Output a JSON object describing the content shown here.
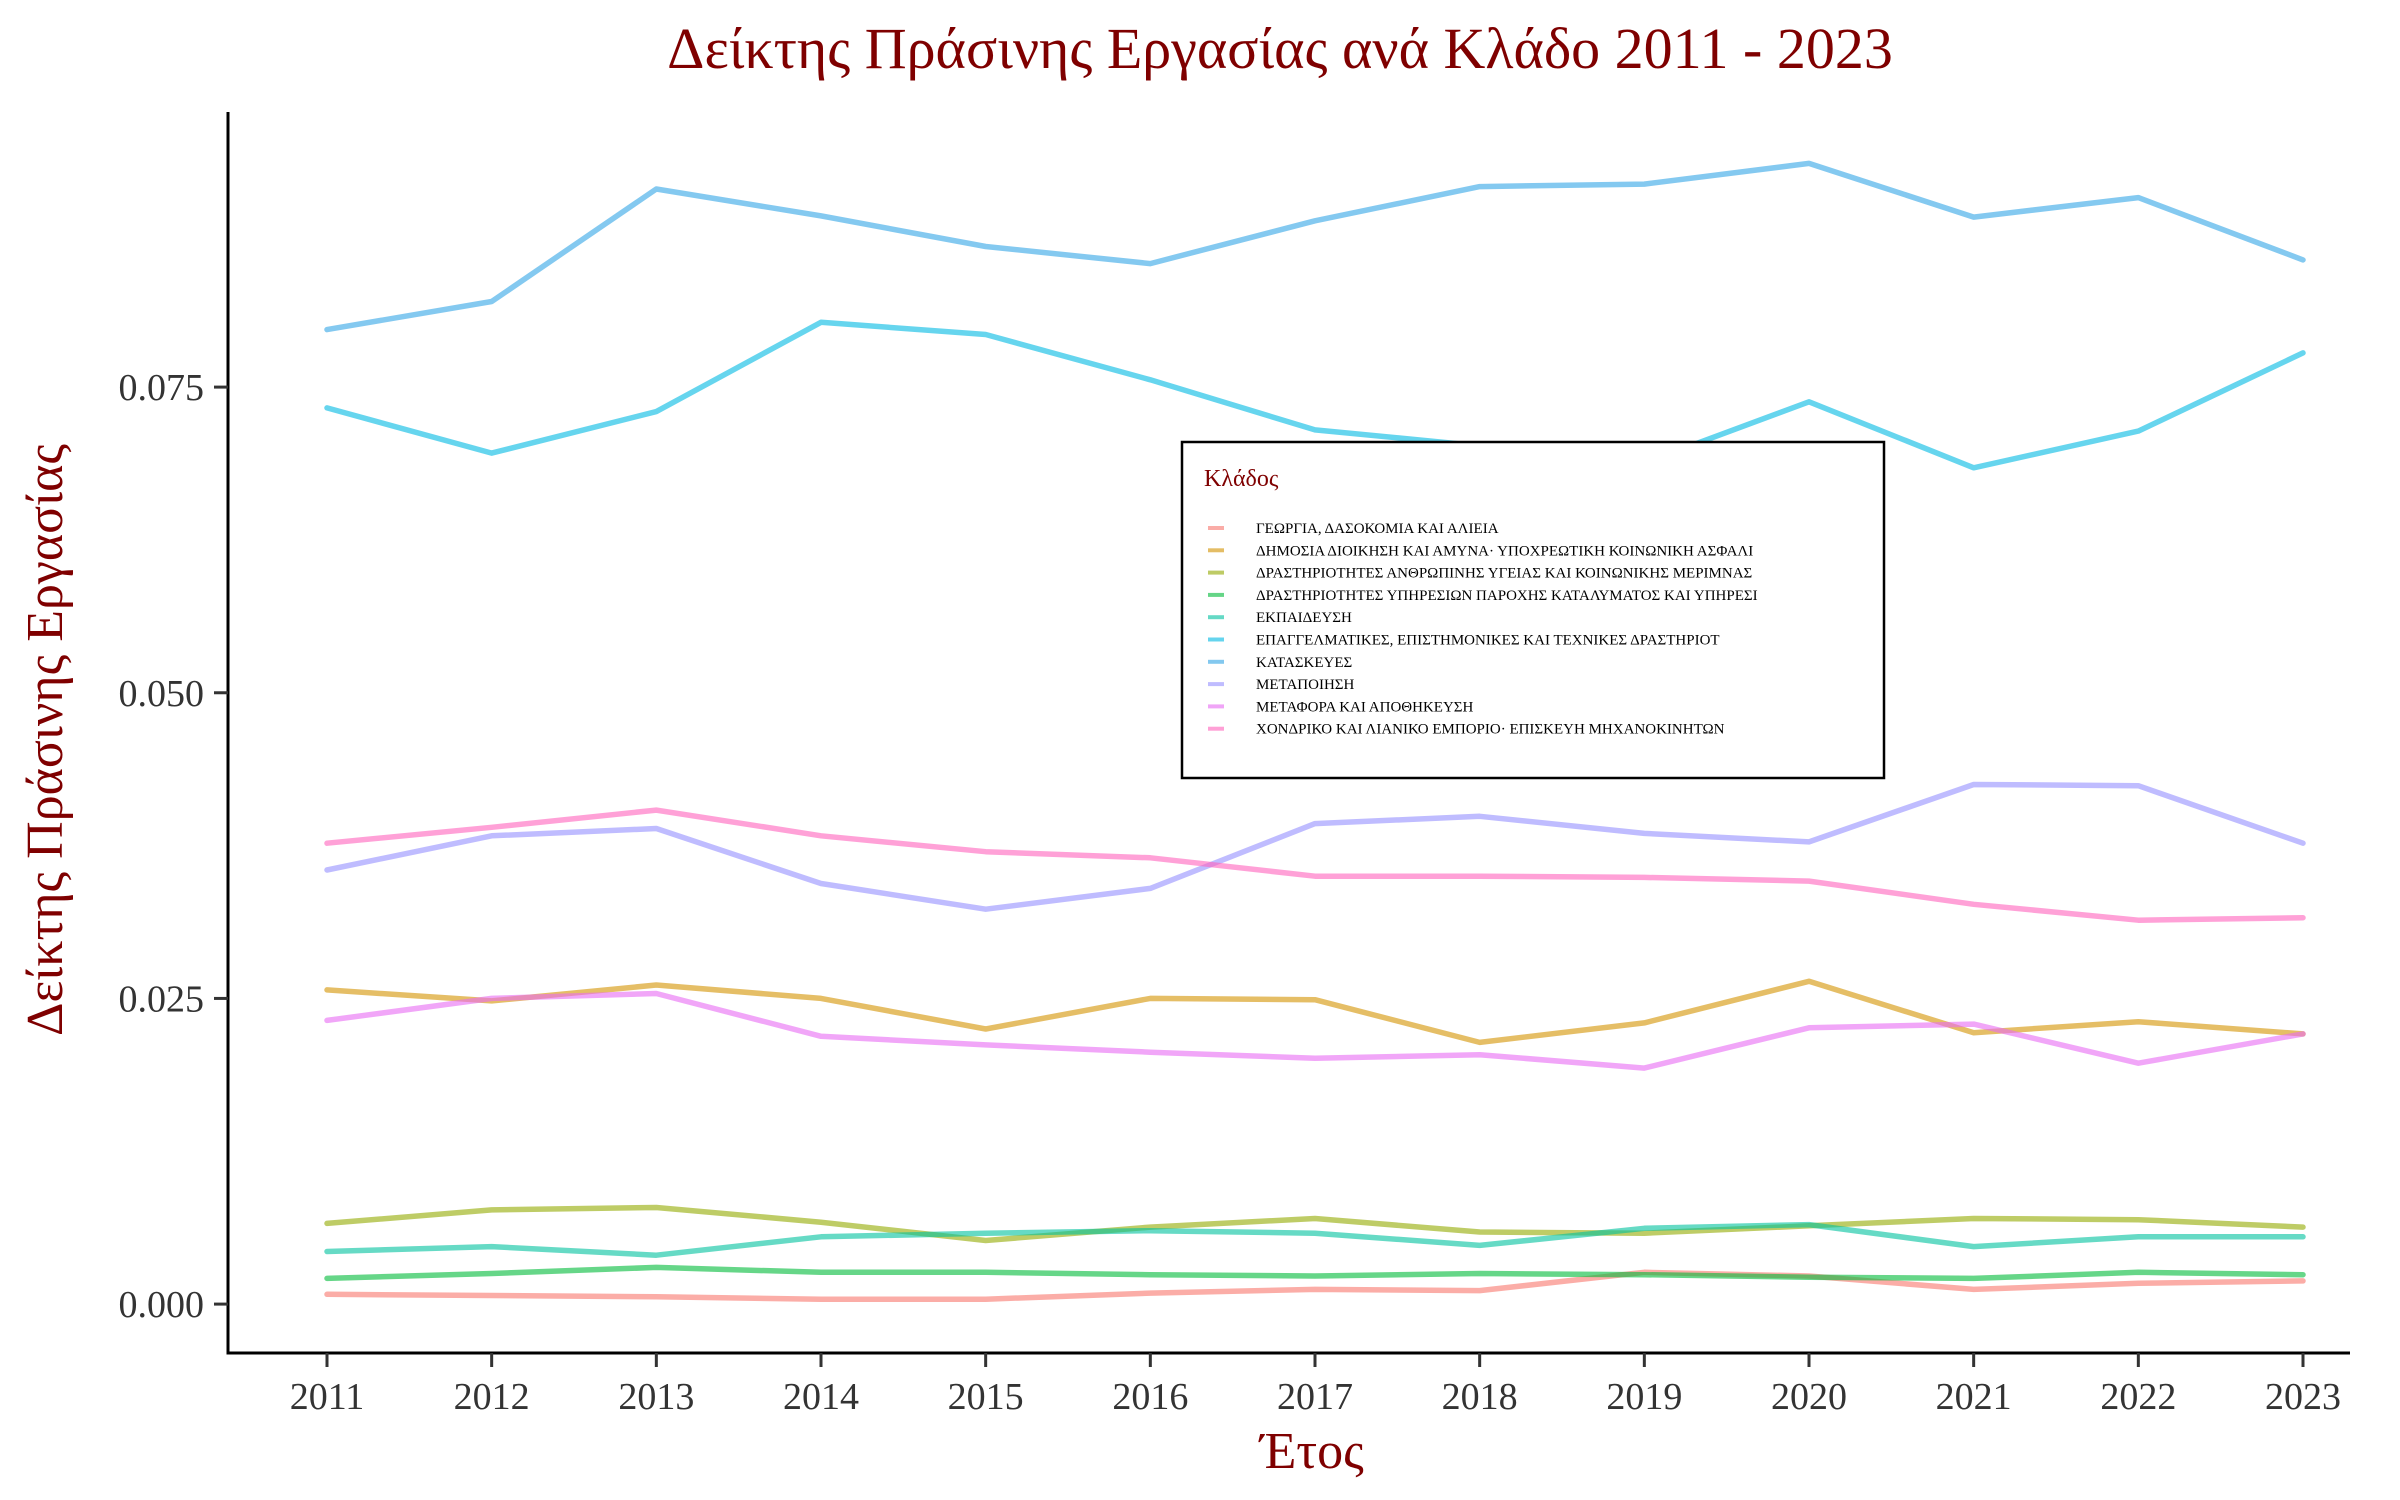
{
  "chart_data": {
    "type": "line",
    "title": "Δείκτης Πράσινης Εργασίας ανά Κλάδο 2011 - 2023",
    "xlabel": "Έτος",
    "ylabel": "Δείκτης Πράσινης Εργασίας",
    "x": [
      2011,
      2012,
      2013,
      2014,
      2015,
      2016,
      2017,
      2018,
      2019,
      2020,
      2021,
      2022,
      2023
    ],
    "ylim": [
      -0.004,
      0.0975
    ],
    "yticks": [
      0.0,
      0.025,
      0.05,
      0.075
    ],
    "ytick_labels": [
      "0.000",
      "0.025",
      "0.050",
      "0.075"
    ],
    "grid": false,
    "legend": {
      "title": "Κλάδος",
      "placement": "center-right"
    },
    "series": [
      {
        "name": "ΓΕΩΡΓΙΑ, ΔΑΣΟΚΟΜΙΑ ΚΑΙ ΑΛΙΕΙΑ",
        "color": "#F8766D",
        "values": [
          0.0008,
          0.0007,
          0.0006,
          0.0004,
          0.0004,
          0.0009,
          0.0012,
          0.0011,
          0.0026,
          0.0023,
          0.0012,
          0.0017,
          0.0019
        ]
      },
      {
        "name": "ΔΗΜΟΣΙΑ ΔΙΟΙΚΗΣΗ ΚΑΙ ΑΜΥΝΑ· ΥΠΟΧΡΕΩΤΙΚΗ ΚΟΙΝΩΝΙΚΗ ΑΣΦΑΛΙ",
        "color": "#D39200",
        "values": [
          0.0257,
          0.0248,
          0.0261,
          0.025,
          0.0225,
          0.025,
          0.0249,
          0.0214,
          0.023,
          0.0264,
          0.0222,
          0.0231,
          0.0221
        ]
      },
      {
        "name": "ΔΡΑΣΤΗΡΙΟΤΗΤΕΣ ΑΝΘΡΩΠΙΝΗΣ ΥΓΕΙΑΣ ΚΑΙ ΚΟΙΝΩΝΙΚΗΣ ΜΕΡΙΜΝΑΣ",
        "color": "#93AA00",
        "values": [
          0.0066,
          0.0077,
          0.0079,
          0.0067,
          0.0052,
          0.0063,
          0.007,
          0.0059,
          0.0058,
          0.0064,
          0.007,
          0.0069,
          0.0063
        ]
      },
      {
        "name": "ΔΡΑΣΤΗΡΙΟΤΗΤΕΣ ΥΠΗΡΕΣΙΩΝ ΠΑΡΟΧΗΣ ΚΑΤΑΛΥΜΑΤΟΣ ΚΑΙ ΥΠΗΡΕΣΙ",
        "color": "#00BA38",
        "values": [
          0.0021,
          0.0025,
          0.003,
          0.0026,
          0.0026,
          0.0024,
          0.0023,
          0.0025,
          0.0024,
          0.0022,
          0.0021,
          0.0026,
          0.0024
        ]
      },
      {
        "name": "ΕΚΠΑΙΔΕΥΣΗ",
        "color": "#00C19F",
        "values": [
          0.0043,
          0.0047,
          0.004,
          0.0055,
          0.0058,
          0.006,
          0.0058,
          0.0048,
          0.0062,
          0.0065,
          0.0047,
          0.0055,
          0.0055
        ]
      },
      {
        "name": "ΕΠΑΓΓΕΛΜΑΤΙΚΕΣ, ΕΠΙΣΤΗΜΟΝΙΚΕΣ ΚΑΙ ΤΕΧΝΙΚΕΣ ΔΡΑΣΤΗΡΙΟΤ",
        "color": "#00B9E3",
        "values": [
          0.0733,
          0.0696,
          0.073,
          0.0803,
          0.0793,
          0.0756,
          0.0715,
          0.0702,
          0.0688,
          0.0738,
          0.0684,
          0.0714,
          0.0778
        ]
      },
      {
        "name": "ΚΑΤΑΣΚΕΥΕΣ",
        "color": "#32A5E6",
        "values": [
          0.0797,
          0.082,
          0.0912,
          0.089,
          0.0865,
          0.0851,
          0.0886,
          0.0914,
          0.0916,
          0.0933,
          0.0889,
          0.0905,
          0.0854
        ]
      },
      {
        "name": "ΜΕΤΑΠΟΙΗΣΗ",
        "color": "#9590FF",
        "values": [
          0.0355,
          0.0383,
          0.0389,
          0.0344,
          0.0323,
          0.034,
          0.0393,
          0.0399,
          0.0385,
          0.0378,
          0.0425,
          0.0424,
          0.0377
        ]
      },
      {
        "name": "ΜΕΤΑΦΟΡΑ ΚΑΙ ΑΠΟΘΗΚΕΥΣΗ",
        "color": "#E76BF3",
        "values": [
          0.0232,
          0.025,
          0.0254,
          0.0219,
          0.0212,
          0.0206,
          0.0201,
          0.0204,
          0.0193,
          0.0226,
          0.0229,
          0.0197,
          0.0221
        ]
      },
      {
        "name": "ΧΟΝΔΡΙΚΟ ΚΑΙ ΛΙΑΝΙΚΟ ΕΜΠΟΡΙΟ· ΕΠΙΣΚΕΥΗ ΜΗΧΑΝΟΚΙΝΗΤΩΝ",
        "color": "#FF62BC",
        "values": [
          0.0377,
          0.039,
          0.0404,
          0.0383,
          0.037,
          0.0365,
          0.035,
          0.035,
          0.0349,
          0.0346,
          0.0327,
          0.0314,
          0.0316
        ]
      }
    ]
  }
}
